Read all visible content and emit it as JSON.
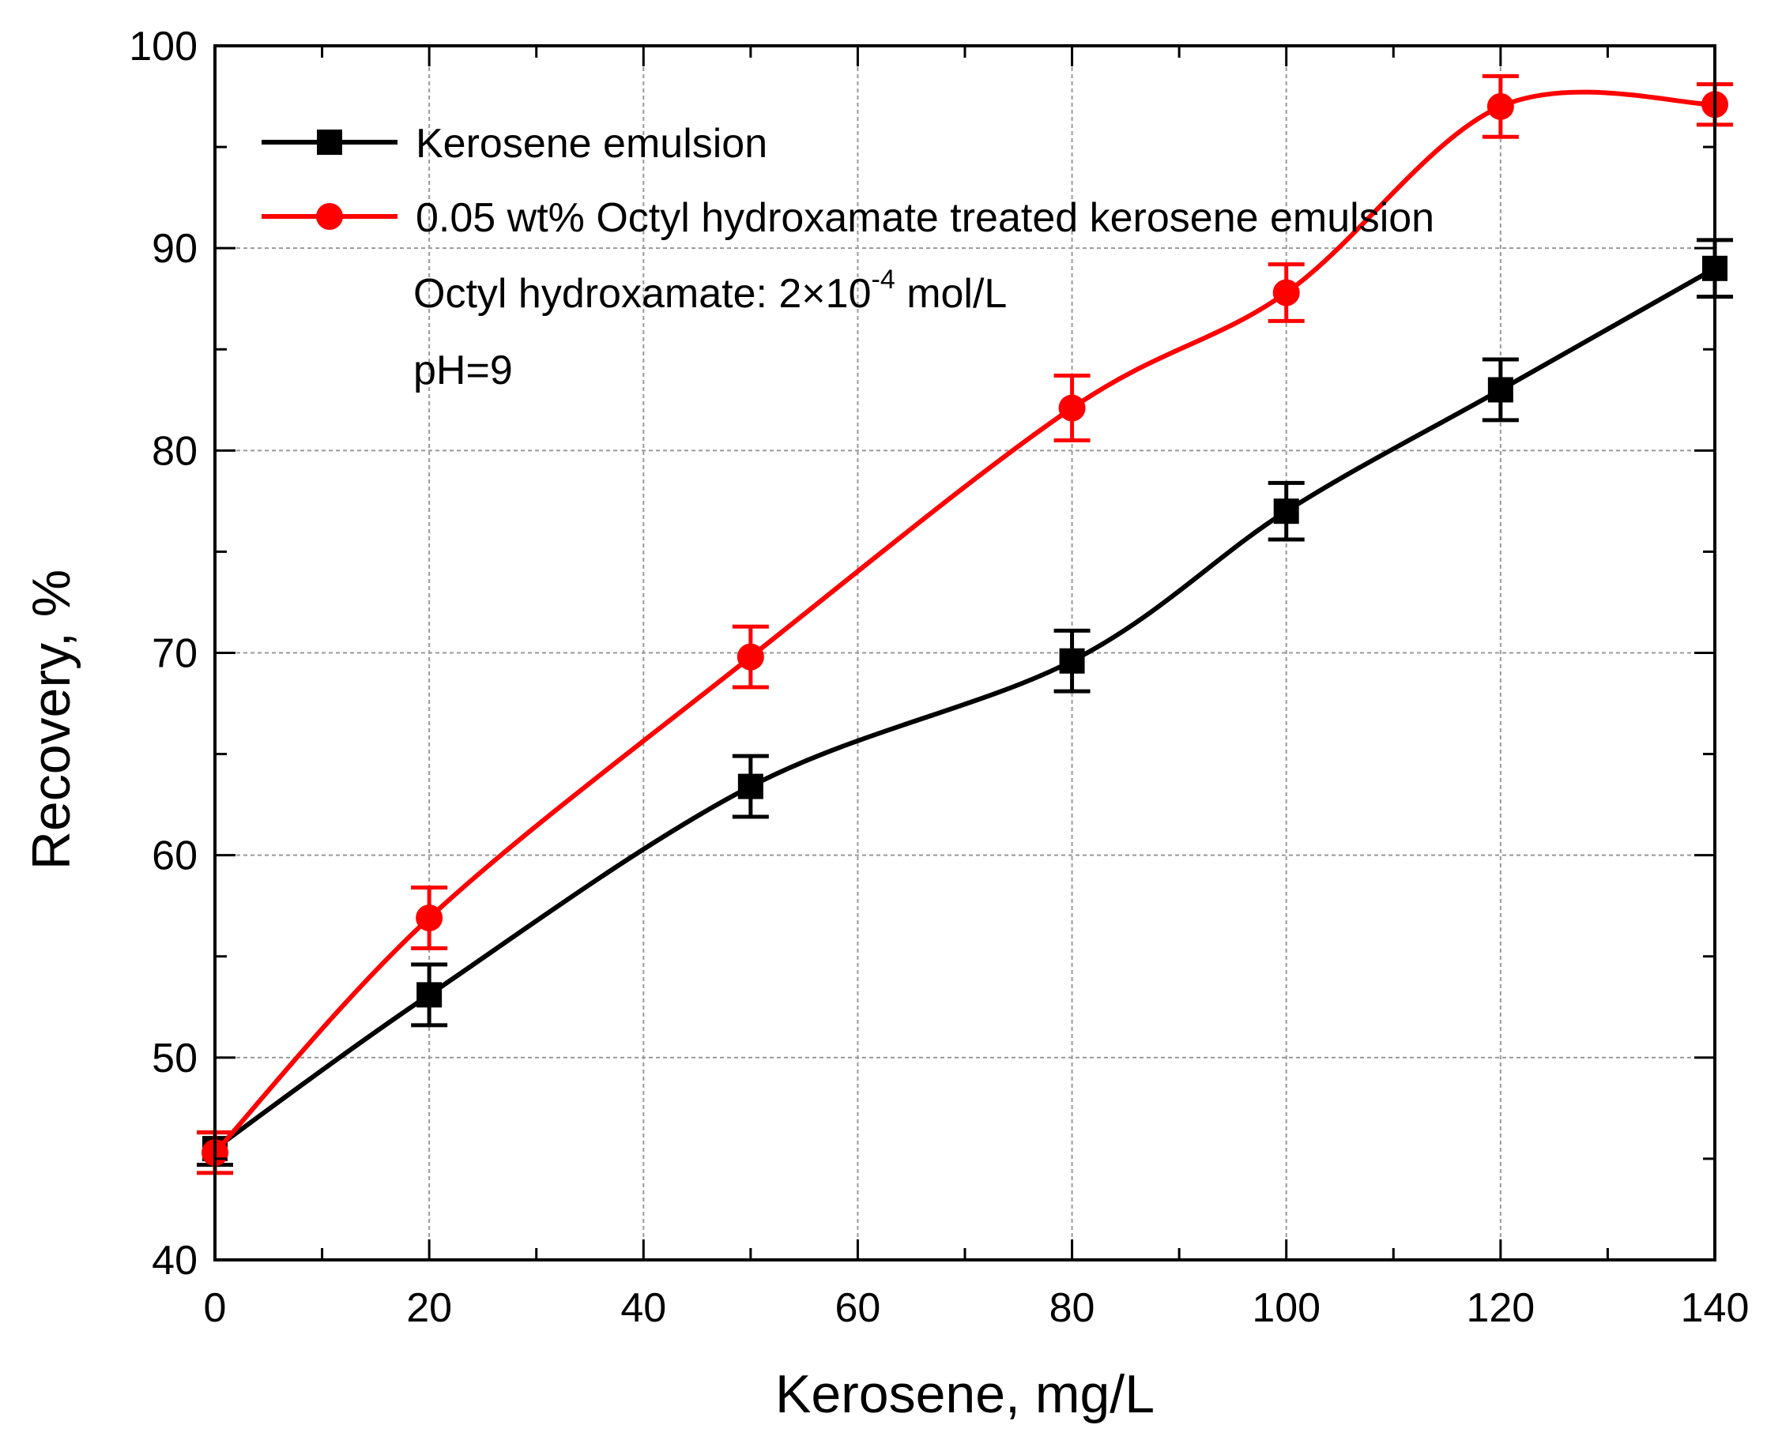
{
  "chart_data": {
    "type": "line",
    "title": "",
    "xlabel": "Kerosene, mg/L",
    "ylabel": "Recovery, %",
    "xlim": [
      0,
      140
    ],
    "ylim": [
      40,
      100
    ],
    "xticks": [
      0,
      20,
      40,
      60,
      80,
      100,
      120,
      140
    ],
    "yticks": [
      40,
      50,
      60,
      70,
      80,
      90,
      100
    ],
    "xminor": 10,
    "yminor": 5,
    "grid": true,
    "legend_position": "top-left",
    "colors": {
      "black": "#000000",
      "red": "#ff0000",
      "grid": "#999999"
    },
    "series": [
      {
        "name": "Kerosene emulsion",
        "marker": "square",
        "color": "#000000",
        "x": [
          0,
          20,
          50,
          80,
          100,
          120,
          140
        ],
        "y": [
          45.5,
          53.1,
          63.4,
          69.6,
          77.0,
          83.0,
          89.0
        ],
        "err": [
          0.8,
          1.5,
          1.5,
          1.5,
          1.4,
          1.5,
          1.4
        ]
      },
      {
        "name": "0.05 wt% Octyl hydroxamate treated kerosene emulsion",
        "marker": "circle",
        "color": "#ff0000",
        "x": [
          0,
          20,
          50,
          80,
          100,
          120,
          140
        ],
        "y": [
          45.3,
          56.9,
          69.8,
          82.1,
          87.8,
          97.0,
          97.1
        ],
        "err": [
          1.0,
          1.5,
          1.5,
          1.6,
          1.4,
          1.5,
          1.0
        ]
      }
    ],
    "annotations": {
      "reagent_prefix": "Octyl hydroxamate: 2×10",
      "reagent_exp": "-4",
      "reagent_unit": " mol/L",
      "ph": "pH=9"
    }
  }
}
